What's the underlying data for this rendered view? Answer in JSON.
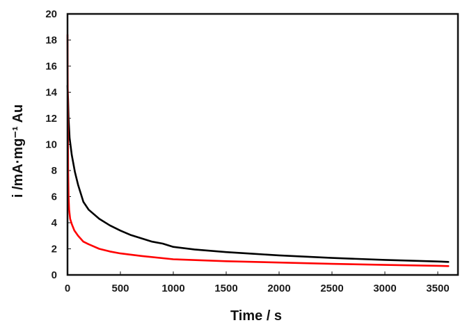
{
  "chart_data": {
    "type": "line",
    "title": "",
    "xlabel": "Time / s",
    "ylabel": "i /mA·mg⁻¹ Au",
    "xlim": [
      0,
      3700
    ],
    "ylim": [
      0,
      20
    ],
    "x_ticks": [
      0,
      500,
      1000,
      1500,
      2000,
      2500,
      3000,
      3500
    ],
    "y_ticks": [
      0,
      2,
      4,
      6,
      8,
      10,
      12,
      14,
      16,
      18,
      20
    ],
    "grid": false,
    "legend": null,
    "series": [
      {
        "name": "black curve",
        "color": "#000000",
        "x": [
          0,
          5,
          10,
          20,
          40,
          70,
          100,
          150,
          200,
          300,
          400,
          500,
          600,
          700,
          800,
          900,
          1000,
          1200,
          1500,
          1750,
          2000,
          2500,
          3000,
          3500,
          3600
        ],
        "y": [
          14.5,
          13.5,
          12.0,
          10.5,
          9.2,
          7.9,
          6.9,
          5.6,
          5.0,
          4.3,
          3.8,
          3.4,
          3.05,
          2.8,
          2.55,
          2.4,
          2.15,
          1.95,
          1.75,
          1.62,
          1.5,
          1.3,
          1.15,
          1.03,
          1.0
        ]
      },
      {
        "name": "red curve",
        "color": "#ff0000",
        "x": [
          0,
          3,
          6,
          10,
          15,
          25,
          40,
          65,
          100,
          150,
          200,
          300,
          400,
          500,
          700,
          1000,
          1500,
          2000,
          2500,
          3000,
          3500,
          3600
        ],
        "y": [
          18.4,
          12.0,
          8.0,
          6.0,
          5.0,
          4.3,
          3.9,
          3.4,
          3.0,
          2.55,
          2.35,
          2.0,
          1.8,
          1.65,
          1.45,
          1.2,
          1.05,
          0.95,
          0.85,
          0.77,
          0.7,
          0.68
        ]
      }
    ]
  }
}
